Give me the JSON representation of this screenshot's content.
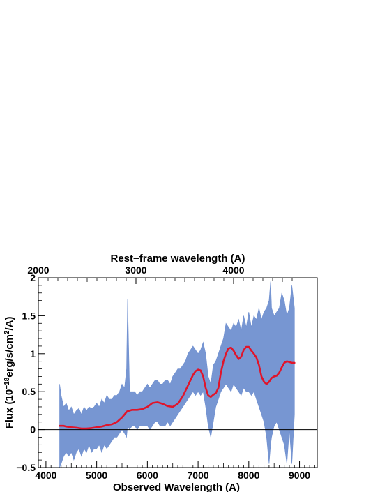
{
  "chart_data": {
    "type": "line",
    "title": "",
    "xlabel": "Observed Wavelength (A)",
    "ylabel_parts": [
      "Flux (10",
      "−18",
      "erg/s/cm",
      "2",
      "/A)"
    ],
    "x2label": "Rest−frame wavelength (A)",
    "xlim": [
      3850,
      9350
    ],
    "ylim": [
      -0.5,
      2
    ],
    "x_ticks": [
      4000,
      5000,
      6000,
      7000,
      8000,
      9000
    ],
    "y_ticks": [
      {
        "value": -0.5,
        "label": "−0.5"
      },
      {
        "value": 0,
        "label": "0"
      },
      {
        "value": 0.5,
        "label": "0.5"
      },
      {
        "value": 1,
        "label": "1"
      },
      {
        "value": 1.5,
        "label": "1.5"
      },
      {
        "value": 2,
        "label": "2"
      }
    ],
    "x2_ticks": [
      {
        "observed": 3850,
        "label": "2000"
      },
      {
        "observed": 5775,
        "label": "3000"
      },
      {
        "observed": 7700,
        "label": "4000"
      }
    ],
    "zero_line": 0,
    "grid": false,
    "series": [
      {
        "name": "",
        "kind": "spectrum",
        "color": "#7090d0",
        "x": [
          4270,
          4300,
          4350,
          4400,
          4450,
          4500,
          4550,
          4600,
          4650,
          4700,
          4750,
          4800,
          4850,
          4900,
          4950,
          5000,
          5050,
          5100,
          5150,
          5200,
          5250,
          5300,
          5350,
          5400,
          5450,
          5500,
          5550,
          5590,
          5610,
          5650,
          5700,
          5750,
          5800,
          5850,
          5900,
          5950,
          6000,
          6050,
          6100,
          6150,
          6200,
          6250,
          6300,
          6350,
          6400,
          6450,
          6500,
          6550,
          6600,
          6650,
          6700,
          6750,
          6800,
          6850,
          6900,
          6950,
          7000,
          7050,
          7100,
          7150,
          7200,
          7250,
          7300,
          7350,
          7400,
          7450,
          7500,
          7550,
          7600,
          7650,
          7700,
          7750,
          7800,
          7850,
          7900,
          7950,
          8000,
          8050,
          8100,
          8150,
          8200,
          8250,
          8300,
          8350,
          8400,
          8430,
          8450,
          8500,
          8550,
          8600,
          8650,
          8700,
          8750,
          8800,
          8850,
          8900
        ],
        "upper": [
          0.6,
          0.45,
          0.3,
          0.35,
          0.25,
          0.3,
          0.2,
          0.25,
          0.28,
          0.2,
          0.3,
          0.25,
          0.3,
          0.28,
          0.3,
          0.35,
          0.3,
          0.4,
          0.35,
          0.45,
          0.4,
          0.4,
          0.45,
          0.45,
          0.5,
          0.6,
          0.55,
          0.8,
          1.72,
          0.5,
          0.5,
          0.5,
          0.45,
          0.5,
          0.5,
          0.55,
          0.6,
          0.55,
          0.6,
          0.65,
          0.65,
          0.6,
          0.6,
          0.65,
          0.65,
          0.6,
          0.7,
          0.75,
          0.8,
          0.8,
          0.85,
          0.9,
          1.0,
          1.05,
          1.1,
          1.05,
          1.0,
          1.05,
          1.15,
          1.0,
          0.7,
          0.6,
          0.85,
          0.9,
          1.0,
          1.1,
          1.2,
          1.4,
          1.35,
          1.3,
          1.4,
          1.35,
          1.45,
          1.3,
          1.5,
          1.35,
          1.55,
          1.35,
          1.5,
          1.45,
          1.6,
          1.45,
          1.55,
          1.6,
          1.7,
          1.95,
          1.6,
          1.5,
          1.55,
          1.6,
          1.8,
          1.7,
          1.5,
          1.6,
          1.9,
          1.6
        ],
        "lower": [
          -0.5,
          -0.45,
          -0.35,
          -0.3,
          -0.35,
          -0.3,
          -0.4,
          -0.3,
          -0.25,
          -0.35,
          -0.25,
          -0.3,
          -0.2,
          -0.3,
          -0.25,
          -0.25,
          -0.2,
          -0.3,
          -0.2,
          -0.25,
          -0.2,
          -0.15,
          -0.1,
          -0.1,
          -0.05,
          0.0,
          -0.05,
          -0.1,
          0.05,
          0.0,
          0.05,
          0.05,
          0.0,
          0.05,
          0.05,
          0.05,
          0.05,
          0.0,
          0.05,
          0.1,
          0.1,
          0.05,
          0.05,
          0.05,
          0.1,
          0.05,
          0.1,
          0.15,
          0.2,
          0.25,
          0.3,
          0.35,
          0.4,
          0.45,
          0.5,
          0.45,
          0.5,
          0.45,
          0.5,
          0.3,
          0.05,
          -0.1,
          0.1,
          0.3,
          0.4,
          0.5,
          0.55,
          0.6,
          0.55,
          0.5,
          0.6,
          0.55,
          0.5,
          0.45,
          0.55,
          0.5,
          0.5,
          0.45,
          0.5,
          0.4,
          0.3,
          0.2,
          0.1,
          -0.1,
          -0.45,
          -0.2,
          -0.1,
          0.05,
          0.1,
          0.0,
          -0.1,
          -0.2,
          -0.45,
          0.0,
          -0.45,
          0.2
        ]
      },
      {
        "name": "",
        "kind": "smoothed",
        "color": "#e0142a",
        "x": [
          4270,
          4350,
          4400,
          4500,
          4600,
          4700,
          4800,
          4900,
          5000,
          5100,
          5200,
          5300,
          5400,
          5500,
          5600,
          5700,
          5800,
          5900,
          6000,
          6100,
          6200,
          6300,
          6400,
          6500,
          6600,
          6700,
          6800,
          6900,
          6950,
          7000,
          7050,
          7100,
          7150,
          7200,
          7250,
          7300,
          7350,
          7400,
          7450,
          7500,
          7550,
          7600,
          7650,
          7700,
          7750,
          7800,
          7850,
          7900,
          7950,
          8000,
          8050,
          8100,
          8150,
          8200,
          8250,
          8300,
          8350,
          8400,
          8450,
          8500,
          8550,
          8600,
          8650,
          8700,
          8750,
          8800,
          8850,
          8900
        ],
        "y": [
          0.05,
          0.05,
          0.04,
          0.03,
          0.025,
          0.015,
          0.015,
          0.02,
          0.03,
          0.04,
          0.06,
          0.07,
          0.1,
          0.16,
          0.24,
          0.26,
          0.26,
          0.27,
          0.3,
          0.35,
          0.36,
          0.34,
          0.31,
          0.3,
          0.34,
          0.44,
          0.58,
          0.72,
          0.77,
          0.79,
          0.78,
          0.7,
          0.55,
          0.45,
          0.43,
          0.46,
          0.48,
          0.55,
          0.75,
          0.9,
          1.0,
          1.07,
          1.08,
          1.04,
          0.98,
          0.93,
          0.96,
          1.05,
          1.09,
          1.09,
          1.04,
          1.0,
          0.95,
          0.85,
          0.7,
          0.63,
          0.6,
          0.63,
          0.68,
          0.7,
          0.71,
          0.75,
          0.82,
          0.88,
          0.9,
          0.89,
          0.88,
          0.88
        ]
      }
    ]
  }
}
